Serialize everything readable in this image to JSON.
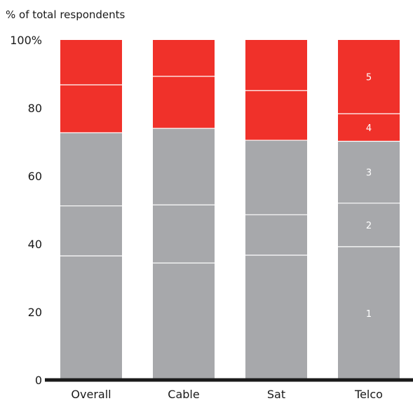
{
  "chart_data": {
    "type": "bar",
    "stacked": true,
    "ylabel": "% of total respondents",
    "ylim": [
      0,
      100
    ],
    "yticks": [
      0,
      20,
      40,
      60,
      80,
      100
    ],
    "ytick_labels": [
      "0",
      "20",
      "40",
      "60",
      "80",
      "100%"
    ],
    "categories": [
      "Overall",
      "Cable",
      "Sat",
      "Telco"
    ],
    "series": [
      {
        "name": "1",
        "color": "#a7a8ab",
        "values": [
          36.5,
          34.4,
          36.7,
          39.2
        ]
      },
      {
        "name": "2",
        "color": "#a7a8ab",
        "values": [
          14.7,
          17.1,
          11.9,
          12.8
        ]
      },
      {
        "name": "3",
        "color": "#a7a8ab",
        "values": [
          21.5,
          22.5,
          21.9,
          18.2
        ]
      },
      {
        "name": "4",
        "color": "#f0312a",
        "values": [
          14.1,
          15.3,
          14.6,
          8.1
        ]
      },
      {
        "name": "5",
        "color": "#f0312a",
        "values": [
          13.2,
          10.7,
          14.9,
          21.7
        ]
      }
    ],
    "labeled_category": "Telco",
    "grid": false,
    "legend": "none"
  }
}
